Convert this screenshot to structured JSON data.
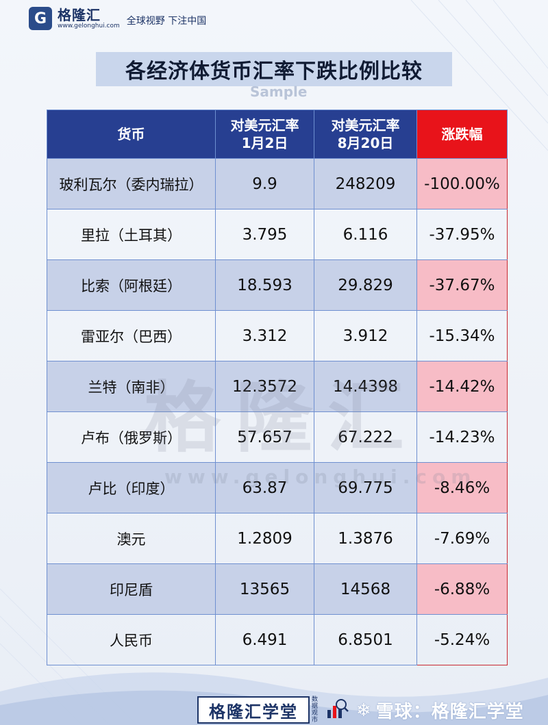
{
  "header": {
    "logo_letter": "G",
    "brand": "格隆汇",
    "url": "www.gelonghui.com",
    "slogan": "全球视野 下注中国"
  },
  "title": "各经济体货币汇率下跌比例比较",
  "sample_mark": "Sample",
  "table": {
    "headers": {
      "currency": "货币",
      "jan_line1": "对美元汇率",
      "jan_line2": "1月2日",
      "aug_line1": "对美元汇率",
      "aug_line2": "8月20日",
      "change": "涨跌幅"
    },
    "rows": [
      {
        "currency": "玻利瓦尔（委内瑞拉）",
        "jan": "9.9",
        "aug": "248209",
        "change": "-100.00%"
      },
      {
        "currency": "里拉（土耳其）",
        "jan": "3.795",
        "aug": "6.116",
        "change": "-37.95%"
      },
      {
        "currency": "比索（阿根廷）",
        "jan": "18.593",
        "aug": "29.829",
        "change": "-37.67%"
      },
      {
        "currency": "雷亚尔（巴西）",
        "jan": "3.312",
        "aug": "3.912",
        "change": "-15.34%"
      },
      {
        "currency": "兰特（南非）",
        "jan": "12.3572",
        "aug": "14.4398",
        "change": "-14.42%"
      },
      {
        "currency": "卢布（俄罗斯）",
        "jan": "57.657",
        "aug": "67.222",
        "change": "-14.23%"
      },
      {
        "currency": "卢比（印度）",
        "jan": "63.87",
        "aug": "69.775",
        "change": "-8.46%"
      },
      {
        "currency": "澳元",
        "jan": "1.2809",
        "aug": "1.3876",
        "change": "-7.69%"
      },
      {
        "currency": "印尼盾",
        "jan": "13565",
        "aug": "14568",
        "change": "-6.88%"
      },
      {
        "currency": "人民币",
        "jan": "6.491",
        "aug": "6.8501",
        "change": "-5.24%"
      }
    ]
  },
  "watermark": {
    "text": "格隆汇",
    "url": "www.gelonghui.com"
  },
  "footer": {
    "brand": "格隆汇学堂",
    "sub": "数据观市",
    "social": "雪球：格隆汇学堂"
  },
  "colors": {
    "header_blue": "#273f91",
    "change_red": "#e8131a",
    "row_alt": "#c7d1e8",
    "change_alt": "#f7bcc6"
  }
}
